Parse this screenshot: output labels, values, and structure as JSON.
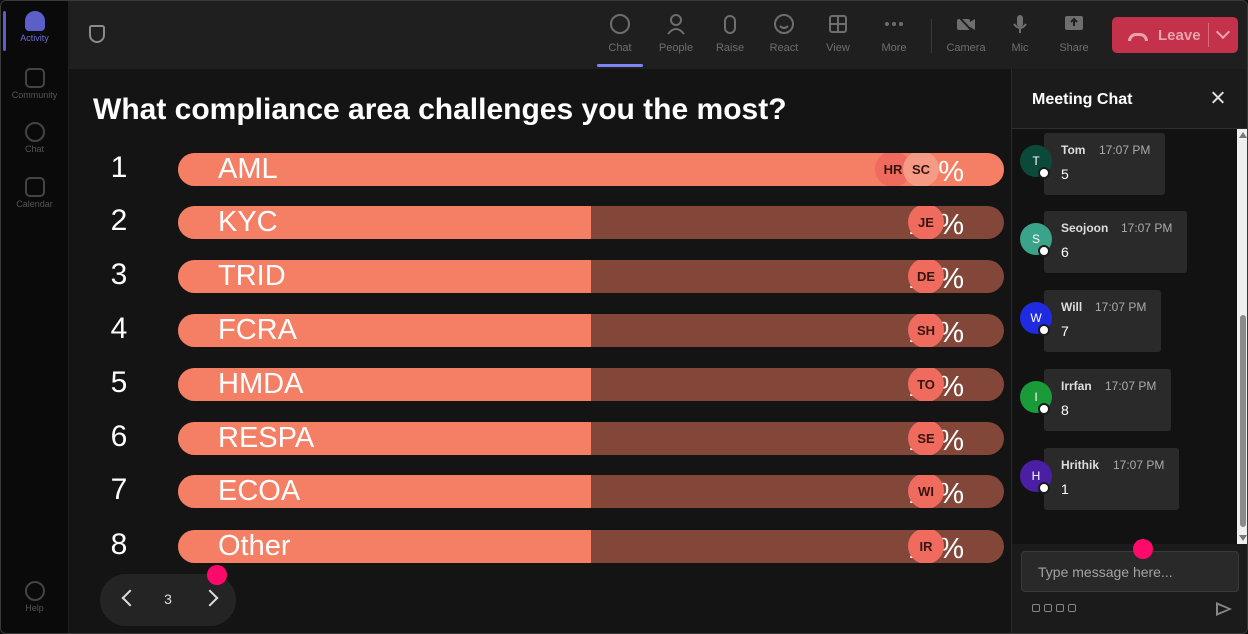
{
  "rail": {
    "items": [
      {
        "label": "Activity",
        "icon": "bell-icon"
      },
      {
        "label": "Community",
        "icon": "community-icon"
      },
      {
        "label": "Chat",
        "icon": "chat-icon"
      },
      {
        "label": "Calendar",
        "icon": "calendar-icon"
      },
      {
        "label": "Help",
        "icon": "help-icon"
      }
    ]
  },
  "toolbar": {
    "chat": "Chat",
    "people": "People",
    "raise": "Raise",
    "react": "React",
    "view": "View",
    "more": "More",
    "camera": "Camera",
    "mic": "Mic",
    "share": "Share",
    "leave": "Leave"
  },
  "poll": {
    "question": "What compliance area challenges you the most?",
    "options": [
      {
        "rank": "1",
        "label": "AML",
        "fraction": 1.0,
        "avatars": [
          "HR",
          "SC"
        ],
        "percent": "23%"
      },
      {
        "rank": "2",
        "label": "KYC",
        "fraction": 0.5,
        "avatars": [
          "JE"
        ],
        "percent": "11%"
      },
      {
        "rank": "3",
        "label": "TRID",
        "fraction": 0.5,
        "avatars": [
          "DE"
        ],
        "percent": "11%"
      },
      {
        "rank": "4",
        "label": "FCRA",
        "fraction": 0.5,
        "avatars": [
          "SH"
        ],
        "percent": "11%"
      },
      {
        "rank": "5",
        "label": "HMDA",
        "fraction": 0.5,
        "avatars": [
          "TO"
        ],
        "percent": "11%"
      },
      {
        "rank": "6",
        "label": "RESPA",
        "fraction": 0.5,
        "avatars": [
          "SE"
        ],
        "percent": "11%"
      },
      {
        "rank": "7",
        "label": "ECOA",
        "fraction": 0.5,
        "avatars": [
          "WI"
        ],
        "percent": "11%"
      },
      {
        "rank": "8",
        "label": "Other",
        "fraction": 0.5,
        "avatars": [
          "IR"
        ],
        "percent": "11%"
      }
    ],
    "page": "3"
  },
  "chat": {
    "title": "Meeting Chat",
    "messages": [
      {
        "initial": "T",
        "name": "Tom",
        "time": "17:07 PM",
        "text": "5",
        "color": "#0b4a3a"
      },
      {
        "initial": "S",
        "name": "Seojoon",
        "time": "17:07 PM",
        "text": "6",
        "color": "#3aa38a"
      },
      {
        "initial": "W",
        "name": "Will",
        "time": "17:07 PM",
        "text": "7",
        "color": "#1f2be0"
      },
      {
        "initial": "I",
        "name": "Irrfan",
        "time": "17:07 PM",
        "text": "8",
        "color": "#1a9b3a"
      },
      {
        "initial": "H",
        "name": "Hrithik",
        "time": "17:07 PM",
        "text": "1",
        "color": "#4a1fa3"
      }
    ],
    "placeholder": "Type message here..."
  },
  "colors": {
    "bar_fill": "#f47f65",
    "bar_track": "#83473a",
    "leave": "#c4314b",
    "accent": "#7f85f5",
    "cursor_dot": "#ff0a6c"
  }
}
